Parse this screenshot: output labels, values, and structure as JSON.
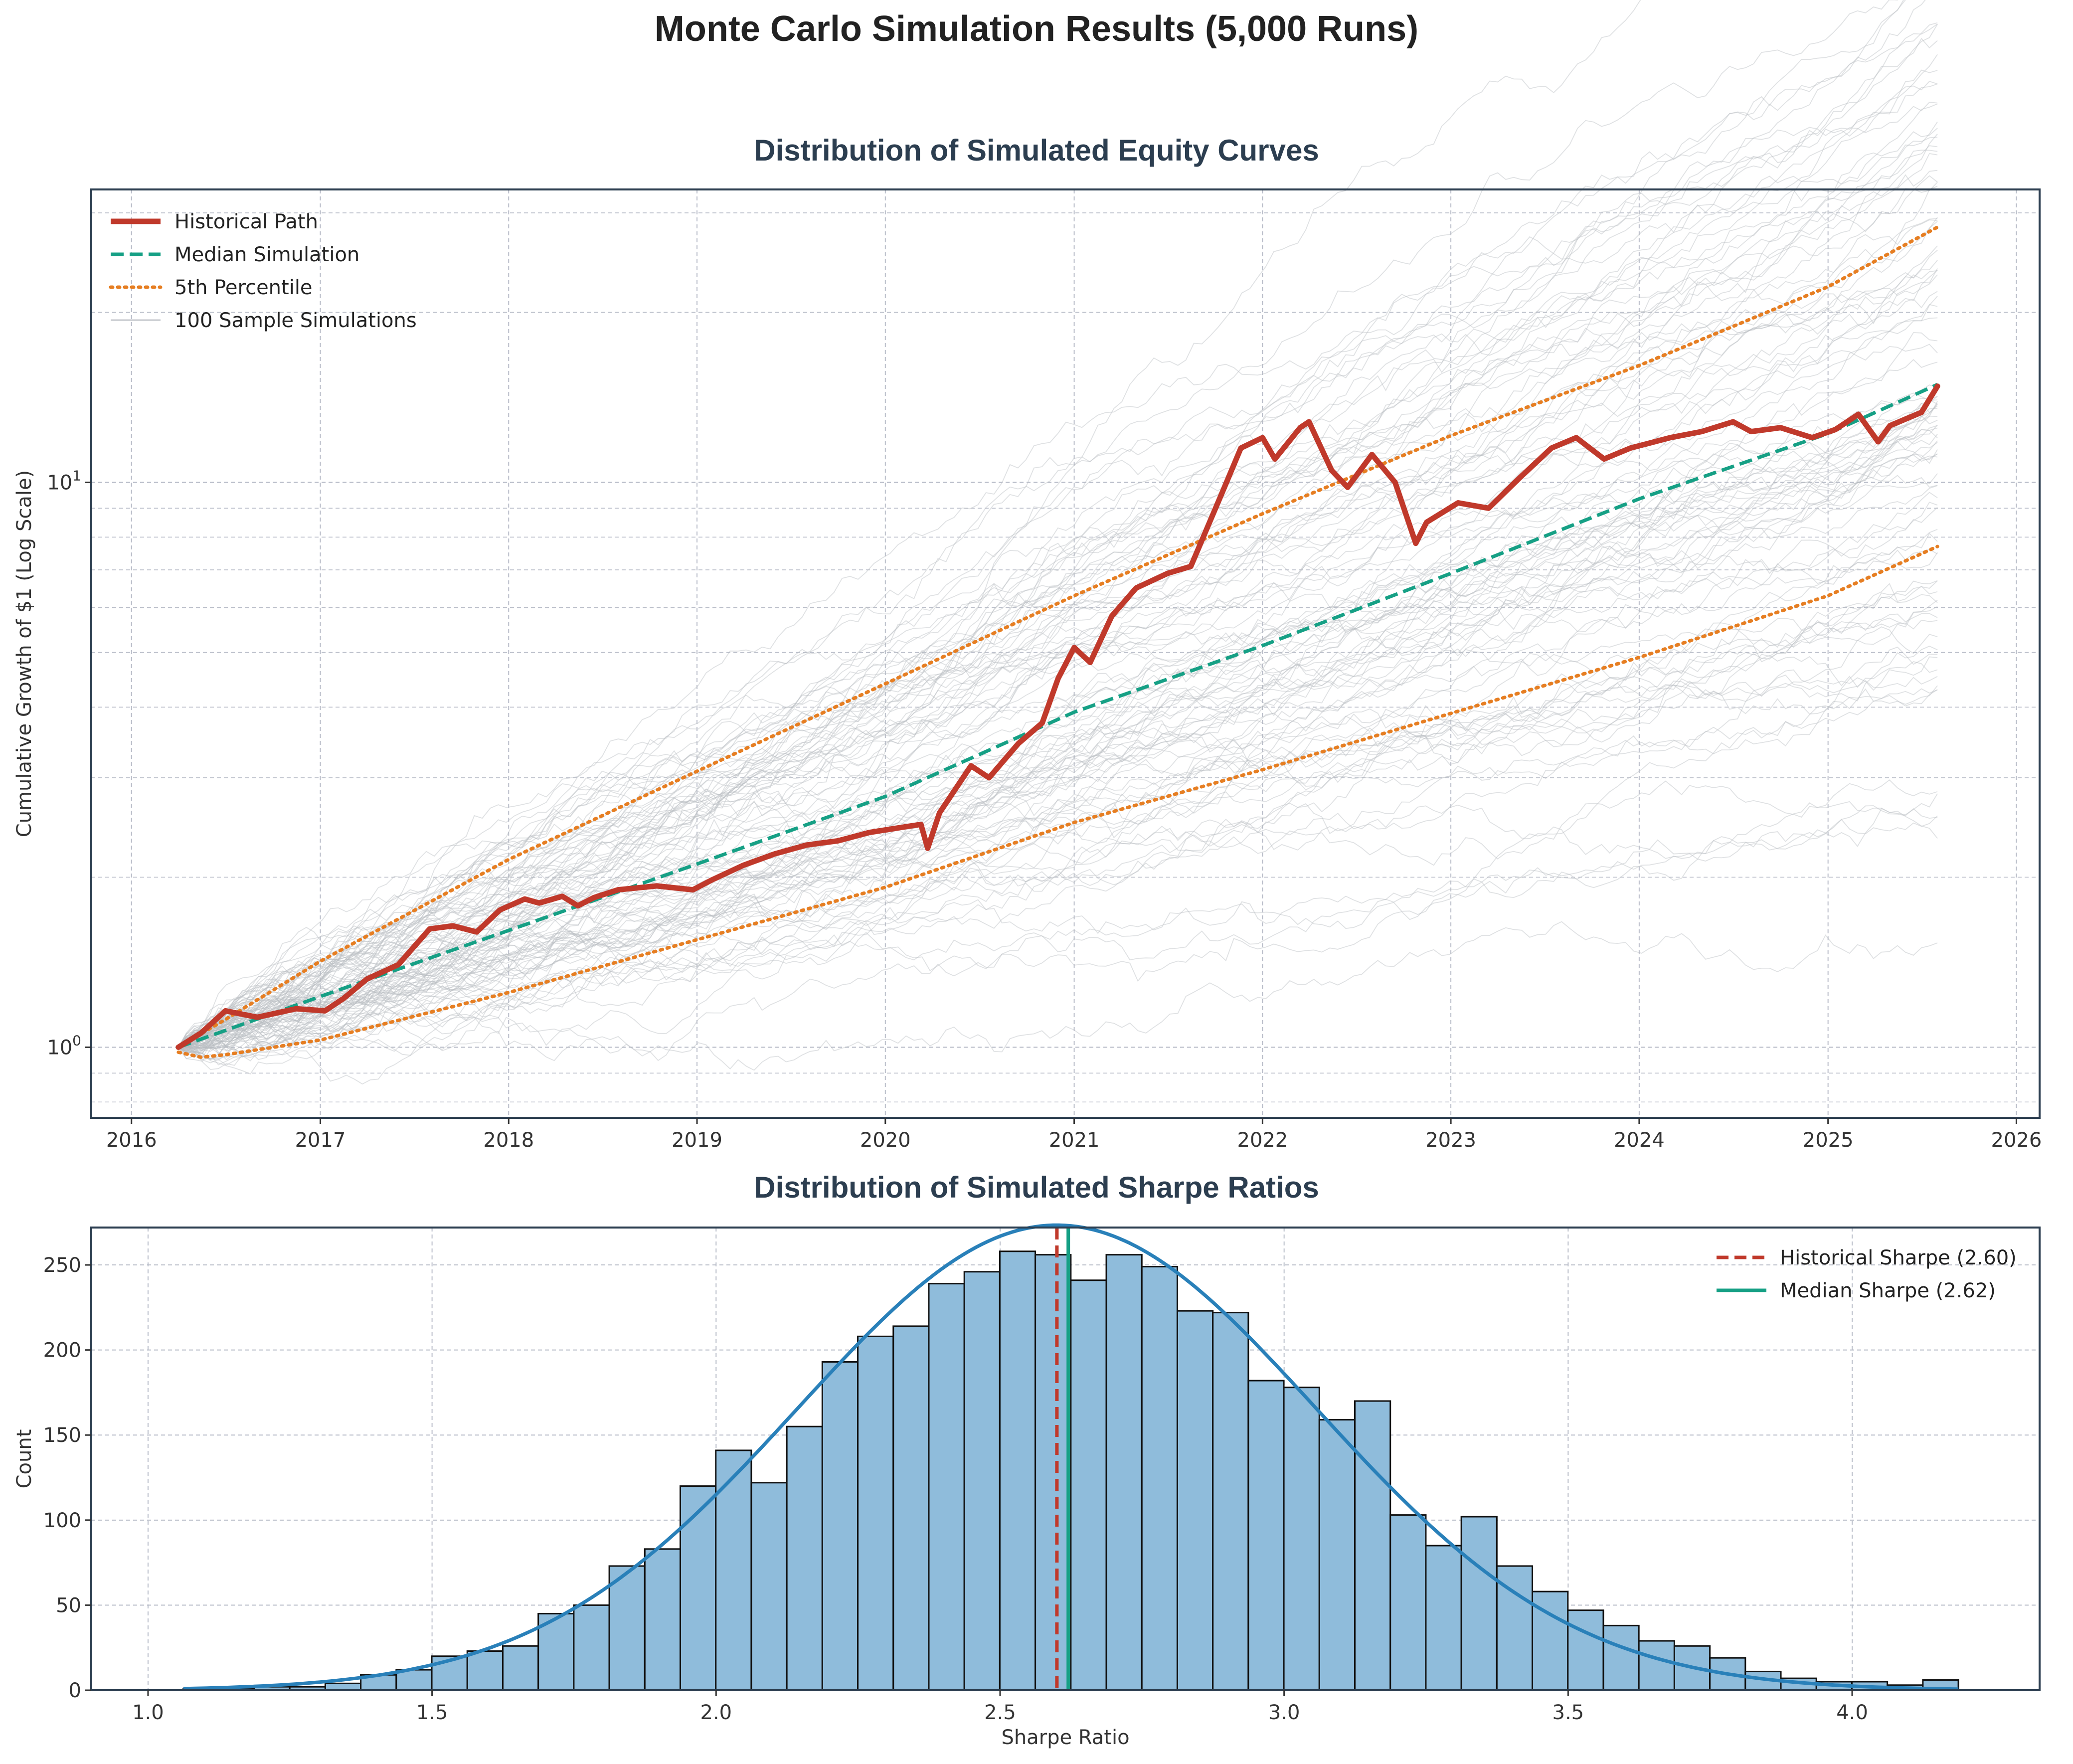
{
  "figure": {
    "title": "Monte Carlo Simulation Results (5,000 Runs)"
  },
  "colors": {
    "historical": "#c0392b",
    "median": "#16a085",
    "percentile": "#e67e22",
    "samples": "#b8bcc2",
    "hist_fill": "#8fbcdb",
    "kde": "#2980b9",
    "title": "#2c3e50"
  },
  "chart_data": [
    {
      "type": "line",
      "title": "Distribution of Simulated Equity Curves",
      "xlabel": "",
      "ylabel": "Cumulative Growth of $1 (Log Scale)",
      "y_scale": "log",
      "xlim": [
        "2015-10-15",
        "2026-02-15"
      ],
      "ylim": [
        0.75,
        33
      ],
      "x_ticks": [
        "2016",
        "2017",
        "2018",
        "2019",
        "2020",
        "2021",
        "2022",
        "2023",
        "2024",
        "2025",
        "2026"
      ],
      "y_ticks": [
        {
          "value": 1,
          "base": "10",
          "exp": "0"
        },
        {
          "value": 10,
          "base": "10",
          "exp": "1"
        }
      ],
      "grid": true,
      "legend": "top-left",
      "legend_entries": [
        "Historical Path",
        "Median Simulation",
        "5th Percentile",
        "100 Sample Simulations"
      ],
      "series": [
        {
          "name": "Historical Path",
          "style": "solid-thick",
          "points": [
            [
              "2016-04-01",
              1.0
            ],
            [
              "2016-05-15",
              1.06
            ],
            [
              "2016-07-01",
              1.16
            ],
            [
              "2016-09-01",
              1.13
            ],
            [
              "2016-11-15",
              1.17
            ],
            [
              "2017-01-10",
              1.16
            ],
            [
              "2017-02-15",
              1.22
            ],
            [
              "2017-04-01",
              1.32
            ],
            [
              "2017-06-01",
              1.4
            ],
            [
              "2017-08-01",
              1.62
            ],
            [
              "2017-09-15",
              1.64
            ],
            [
              "2017-10-31",
              1.6
            ],
            [
              "2017-12-15",
              1.75
            ],
            [
              "2018-02-01",
              1.83
            ],
            [
              "2018-03-01",
              1.8
            ],
            [
              "2018-04-15",
              1.85
            ],
            [
              "2018-05-15",
              1.78
            ],
            [
              "2018-06-15",
              1.84
            ],
            [
              "2018-08-01",
              1.9
            ],
            [
              "2018-10-15",
              1.93
            ],
            [
              "2018-12-24",
              1.9
            ],
            [
              "2019-01-31",
              1.98
            ],
            [
              "2019-04-01",
              2.1
            ],
            [
              "2019-06-01",
              2.2
            ],
            [
              "2019-08-01",
              2.28
            ],
            [
              "2019-10-01",
              2.32
            ],
            [
              "2019-12-01",
              2.4
            ],
            [
              "2020-02-01",
              2.45
            ],
            [
              "2020-03-10",
              2.48
            ],
            [
              "2020-03-23",
              2.25
            ],
            [
              "2020-04-15",
              2.6
            ],
            [
              "2020-06-15",
              3.15
            ],
            [
              "2020-07-20",
              3.0
            ],
            [
              "2020-09-15",
              3.45
            ],
            [
              "2020-10-31",
              3.75
            ],
            [
              "2020-12-01",
              4.5
            ],
            [
              "2021-01-01",
              5.1
            ],
            [
              "2021-02-01",
              4.8
            ],
            [
              "2021-03-15",
              5.8
            ],
            [
              "2021-05-01",
              6.5
            ],
            [
              "2021-07-01",
              6.9
            ],
            [
              "2021-08-15",
              7.1
            ],
            [
              "2021-10-15",
              9.6
            ],
            [
              "2021-11-20",
              11.5
            ],
            [
              "2022-01-01",
              12.0
            ],
            [
              "2022-01-25",
              11.0
            ],
            [
              "2022-03-15",
              12.5
            ],
            [
              "2022-04-01",
              12.8
            ],
            [
              "2022-05-15",
              10.5
            ],
            [
              "2022-06-15",
              9.8
            ],
            [
              "2022-08-01",
              11.2
            ],
            [
              "2022-09-15",
              10.0
            ],
            [
              "2022-10-25",
              7.8
            ],
            [
              "2022-11-15",
              8.5
            ],
            [
              "2023-01-15",
              9.2
            ],
            [
              "2023-03-15",
              9.0
            ],
            [
              "2023-05-15",
              10.2
            ],
            [
              "2023-07-15",
              11.5
            ],
            [
              "2023-09-01",
              12.0
            ],
            [
              "2023-10-25",
              11.0
            ],
            [
              "2023-12-15",
              11.5
            ],
            [
              "2024-03-01",
              12.0
            ],
            [
              "2024-05-01",
              12.3
            ],
            [
              "2024-07-01",
              12.8
            ],
            [
              "2024-08-05",
              12.3
            ],
            [
              "2024-10-01",
              12.5
            ],
            [
              "2024-12-01",
              12.0
            ],
            [
              "2025-01-15",
              12.4
            ],
            [
              "2025-03-01",
              13.2
            ],
            [
              "2025-04-08",
              11.8
            ],
            [
              "2025-05-01",
              12.6
            ],
            [
              "2025-07-01",
              13.3
            ],
            [
              "2025-08-01",
              14.8
            ]
          ]
        },
        {
          "name": "Median Simulation",
          "style": "dashed",
          "points": [
            [
              "2016-04-01",
              1.0
            ],
            [
              "2017-01-01",
              1.23
            ],
            [
              "2018-01-01",
              1.61
            ],
            [
              "2019-01-01",
              2.11
            ],
            [
              "2020-01-01",
              2.78
            ],
            [
              "2021-01-01",
              3.92
            ],
            [
              "2022-01-01",
              5.14
            ],
            [
              "2023-01-01",
              6.9
            ],
            [
              "2024-01-01",
              9.35
            ],
            [
              "2025-01-01",
              12.2
            ],
            [
              "2025-08-01",
              14.9
            ]
          ]
        },
        {
          "name": "5th Percentile",
          "style": "dotted",
          "role": "lower",
          "points": [
            [
              "2016-04-01",
              0.98
            ],
            [
              "2016-05-15",
              0.96
            ],
            [
              "2016-07-01",
              0.97
            ],
            [
              "2017-01-01",
              1.03
            ],
            [
              "2018-01-01",
              1.25
            ],
            [
              "2019-01-01",
              1.55
            ],
            [
              "2020-01-01",
              1.92
            ],
            [
              "2021-01-01",
              2.5
            ],
            [
              "2022-01-01",
              3.1
            ],
            [
              "2023-01-01",
              3.9
            ],
            [
              "2024-01-01",
              4.9
            ],
            [
              "2025-01-01",
              6.3
            ],
            [
              "2025-08-01",
              7.7
            ]
          ]
        },
        {
          "name": "5th Percentile",
          "style": "dotted",
          "role": "upper",
          "points": [
            [
              "2016-04-01",
              1.0
            ],
            [
              "2016-07-01",
              1.12
            ],
            [
              "2017-01-01",
              1.42
            ],
            [
              "2018-01-01",
              2.15
            ],
            [
              "2019-01-01",
              3.08
            ],
            [
              "2020-01-01",
              4.4
            ],
            [
              "2021-01-01",
              6.3
            ],
            [
              "2022-01-01",
              8.8
            ],
            [
              "2023-01-01",
              12.1
            ],
            [
              "2024-01-01",
              16.1
            ],
            [
              "2025-01-01",
              22.2
            ],
            [
              "2025-08-01",
              28.3
            ]
          ]
        }
      ],
      "sample_band": {
        "name": "100 Sample Simulations",
        "count": 100,
        "start": "2016-04-01",
        "end": "2025-08-01"
      }
    },
    {
      "type": "bar",
      "title": "Distribution of Simulated Sharpe Ratios",
      "xlabel": "Sharpe Ratio",
      "ylabel": "Count",
      "xlim": [
        0.9,
        4.33
      ],
      "ylim": [
        0,
        272
      ],
      "x_ticks": [
        "1.0",
        "1.5",
        "2.0",
        "2.5",
        "3.0",
        "3.5",
        "4.0"
      ],
      "y_ticks": [
        "0",
        "50",
        "100",
        "150",
        "200",
        "250"
      ],
      "grid": true,
      "legend": "top-right",
      "bin_start": 1.062,
      "bin_width": 0.0625,
      "values": [
        1,
        1,
        2,
        2,
        4,
        9,
        12,
        20,
        23,
        26,
        45,
        50,
        73,
        83,
        120,
        141,
        122,
        155,
        193,
        208,
        214,
        239,
        246,
        258,
        256,
        241,
        256,
        249,
        223,
        222,
        182,
        178,
        159,
        170,
        103,
        85,
        102,
        73,
        58,
        47,
        38,
        29,
        26,
        19,
        11,
        7,
        5,
        5,
        3,
        6
      ],
      "kde": {
        "mean": 2.6,
        "std": 0.456,
        "n": 5000
      },
      "vlines": [
        {
          "name": "Historical Sharpe (2.60)",
          "value": 2.6,
          "style": "dashed"
        },
        {
          "name": "Median Sharpe (2.62)",
          "value": 2.62,
          "style": "solid"
        }
      ]
    }
  ]
}
